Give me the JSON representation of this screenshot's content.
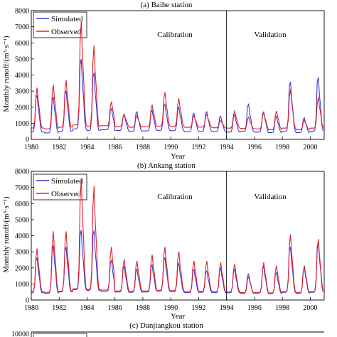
{
  "colors": {
    "simulated": "#3a3ad6",
    "observed": "#e0202a",
    "axis": "#000000"
  },
  "chart_data": [
    {
      "type": "line",
      "title": "(a) Baihe station",
      "xlabel": "Year",
      "ylabel": "Monthly runoff/(m³·s⁻¹)",
      "xlim": [
        1980,
        2001
      ],
      "ylim": [
        0,
        8000
      ],
      "xticks": [
        "1980",
        "1982",
        "1984",
        "1986",
        "1988",
        "1990",
        "1992",
        "1994",
        "1996",
        "1998",
        "2000"
      ],
      "yticks": [
        "0",
        "1000",
        "2000",
        "3000",
        "4000",
        "5000",
        "6000",
        "7000",
        "8000"
      ],
      "legend": {
        "placement": "top-left"
      },
      "split_year": 1994,
      "period_labels": [
        "Calibration",
        "Validation"
      ],
      "annual_peaks": {
        "year": [
          1980,
          1981,
          1982,
          1983,
          1984,
          1985,
          1986,
          1987,
          1988,
          1989,
          1990,
          1991,
          1992,
          1993,
          1994,
          1995,
          1996,
          1997,
          1998,
          1999,
          2000
        ],
        "peak_month": [
          5,
          7,
          6,
          7,
          6,
          9,
          8,
          7,
          8,
          7,
          7,
          8,
          7,
          7,
          7,
          7,
          8,
          7,
          7,
          7,
          7
        ]
      },
      "series": [
        {
          "name": "Simulated",
          "peaks": [
            2900,
            2800,
            3200,
            5300,
            4400,
            2000,
            1600,
            1800,
            1900,
            2300,
            2100,
            1700,
            1800,
            1500,
            1600,
            2300,
            1800,
            1500,
            3800,
            1400,
            4100
          ],
          "base": [
            450,
            400,
            500,
            650,
            550,
            600,
            550,
            500,
            520,
            560,
            540,
            480,
            500,
            480,
            450,
            500,
            450,
            420,
            500,
            420,
            500
          ]
        },
        {
          "name": "Observed",
          "peaks": [
            3300,
            3500,
            3800,
            7600,
            6000,
            2400,
            1600,
            1500,
            2200,
            3000,
            2600,
            1500,
            1600,
            1200,
            1800,
            1400,
            1700,
            1800,
            3200,
            1200,
            2700
          ],
          "base": [
            700,
            650,
            750,
            900,
            800,
            850,
            800,
            750,
            780,
            820,
            800,
            750,
            760,
            720,
            700,
            680,
            650,
            600,
            700,
            600,
            700
          ]
        }
      ]
    },
    {
      "type": "line",
      "title": "(b) Ankang station",
      "xlabel": "Year",
      "ylabel": "Monthly runoff/(m³·s⁻¹)",
      "xlim": [
        1980,
        2001
      ],
      "ylim": [
        0,
        8000
      ],
      "xticks": [
        "1980",
        "1982",
        "1984",
        "1986",
        "1988",
        "1990",
        "1992",
        "1994",
        "1996",
        "1998",
        "2000"
      ],
      "yticks": [
        "0",
        "1000",
        "2000",
        "3000",
        "4000",
        "5000",
        "6000",
        "7000",
        "8000"
      ],
      "legend": {
        "placement": "top-left"
      },
      "split_year": 1994,
      "period_labels": [
        "Calibration",
        "Validation"
      ],
      "annual_peaks": {
        "year": [
          1980,
          1981,
          1982,
          1983,
          1984,
          1985,
          1986,
          1987,
          1988,
          1989,
          1990,
          1991,
          1992,
          1993,
          1994,
          1995,
          1996,
          1997,
          1998,
          1999,
          2000
        ],
        "peak_month": [
          5,
          7,
          6,
          7,
          6,
          9,
          8,
          7,
          8,
          7,
          7,
          8,
          7,
          7,
          7,
          7,
          8,
          7,
          7,
          7,
          7
        ]
      },
      "series": [
        {
          "name": "Simulated",
          "peaks": [
            2800,
            3600,
            3500,
            4600,
            4600,
            2600,
            2200,
            2000,
            2300,
            2800,
            2400,
            2000,
            1900,
            2100,
            2000,
            1700,
            2200,
            1800,
            3500,
            2100,
            3800
          ],
          "base": [
            450,
            420,
            500,
            650,
            600,
            550,
            500,
            480,
            500,
            560,
            520,
            460,
            480,
            460,
            450,
            420,
            430,
            400,
            480,
            420,
            480
          ]
        },
        {
          "name": "Observed",
          "peaks": [
            3300,
            4400,
            4400,
            7800,
            7300,
            3400,
            2600,
            2500,
            2900,
            3400,
            3100,
            2500,
            2500,
            2400,
            2300,
            1500,
            2400,
            2200,
            4200,
            2200,
            3900
          ],
          "base": [
            500,
            480,
            550,
            700,
            650,
            620,
            560,
            540,
            560,
            600,
            580,
            520,
            540,
            520,
            500,
            460,
            470,
            440,
            520,
            460,
            520
          ]
        }
      ]
    },
    {
      "type": "line",
      "title": "(c) Danjiangkou station",
      "yticks": [
        "10000"
      ],
      "ylim_max": 10000
    }
  ]
}
